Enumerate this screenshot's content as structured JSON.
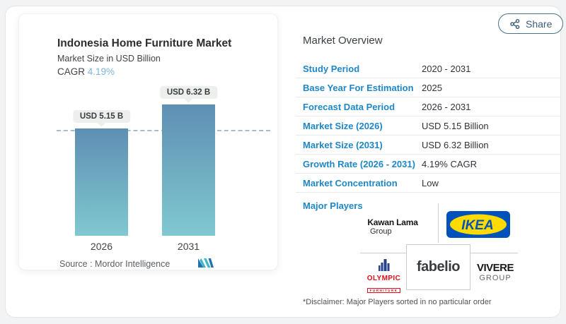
{
  "share_button": {
    "label": "Share"
  },
  "chart_panel": {
    "title": "Indonesia Home Furniture Market",
    "subtitle": "Market Size in USD Billion",
    "cagr_label": "CAGR ",
    "cagr_value": "4.19%",
    "source_label": "Source :  Mordor Intelligence"
  },
  "chart_data": {
    "type": "bar",
    "title": "Indonesia Home Furniture Market",
    "ylabel": "Market Size in USD Billion",
    "categories": [
      "2026",
      "2031"
    ],
    "values": [
      5.15,
      6.32
    ],
    "value_labels": [
      "USD 5.15 B",
      "USD 6.32 B"
    ],
    "ylim": [
      0,
      6.32
    ],
    "reference_line_y": 5.15,
    "cagr_percent": 4.19,
    "grid": false,
    "legend": false,
    "bar_color_top": "#5e8fb3",
    "bar_color_bottom": "#80c8d0"
  },
  "overview": {
    "heading": "Market Overview",
    "rows": [
      {
        "label": "Study Period",
        "value": "2020 - 2031"
      },
      {
        "label": "Base Year For Estimation",
        "value": "2025"
      },
      {
        "label": "Forecast Data Period",
        "value": "2026 - 2031"
      },
      {
        "label": "Market Size (2026)",
        "value": "USD 5.15 Billion"
      },
      {
        "label": "Market Size (2031)",
        "value": "USD 6.32 Billion"
      },
      {
        "label": "Growth Rate (2026 - 2031)",
        "value": "4.19% CAGR"
      },
      {
        "label": "Market Concentration",
        "value": "Low"
      }
    ],
    "major_players_label": "Major Players",
    "players": {
      "kawan_lama": {
        "name": "Kawan Lama",
        "sub": "Group"
      },
      "ikea": {
        "name": "IKEA",
        "reg": "®"
      },
      "olympic": {
        "name": "OLYMPIC",
        "sub": "FURNITURE"
      },
      "fabelio": {
        "name": "fabelio"
      },
      "vivere": {
        "name": "VIVERE",
        "sub": "GROUP"
      }
    },
    "disclaimer": "*Disclaimer: Major Players sorted in no particular order"
  },
  "colors": {
    "accent_blue": "#1e87c7",
    "cagr_blue": "#7cb5d9",
    "bar_top": "#5e8fb3",
    "bar_bottom": "#80c8d0",
    "dashed_line": "#9fc0cd",
    "tooltip_bg": "#edefec",
    "share_button": "#3c5d76",
    "ikea_blue": "#0051ba",
    "ikea_yellow": "#ffdb00",
    "olympic_red": "#e30b17",
    "olympic_blue": "#27418d",
    "mordor_blue": "#2272b4",
    "mordor_teal": "#41b6c5"
  }
}
